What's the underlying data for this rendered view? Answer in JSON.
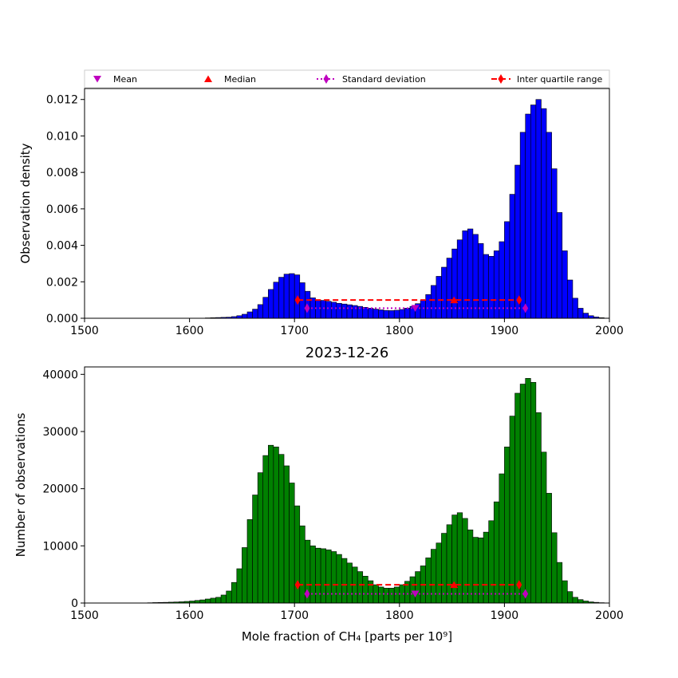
{
  "title": "2023-12-26",
  "legend": {
    "placement": "top",
    "items": [
      {
        "label": "Mean",
        "marker": "triangle-down",
        "color": "#bf00bf"
      },
      {
        "label": "Median",
        "marker": "triangle-up",
        "color": "#ff0000"
      },
      {
        "label": "Standard deviation",
        "marker": "diamond-dotted",
        "color": "#bf00bf"
      },
      {
        "label": "Inter quartile range",
        "marker": "diamond-dashed",
        "color": "#ff0000"
      }
    ]
  },
  "chart_data": [
    {
      "type": "bar",
      "panel": "top",
      "color": "#0000ff",
      "xlabel": "",
      "ylabel": "Observation density",
      "xlim": [
        1500,
        2000
      ],
      "ylim": [
        0,
        0.0126
      ],
      "xticks": [
        "1500",
        "1600",
        "1700",
        "1800",
        "1900",
        "2000"
      ],
      "yticks": [
        "0.000",
        "0.002",
        "0.004",
        "0.006",
        "0.008",
        "0.010",
        "0.012"
      ],
      "bin_start": 1500,
      "bin_width": 5,
      "values": [
        0,
        0,
        0,
        0,
        0,
        0,
        0,
        0,
        0,
        0,
        0,
        0,
        0,
        0,
        0,
        0,
        0,
        0,
        0,
        0,
        0,
        0,
        0,
        2e-05,
        3e-05,
        4e-05,
        5e-05,
        6e-05,
        9e-05,
        0.00014,
        0.00022,
        0.00035,
        0.0005,
        0.00075,
        0.00115,
        0.00158,
        0.00198,
        0.00225,
        0.00242,
        0.00245,
        0.00238,
        0.00195,
        0.00148,
        0.00112,
        0.001,
        0.00098,
        0.00093,
        0.00088,
        0.00082,
        0.00078,
        0.00074,
        0.0007,
        0.00065,
        0.0006,
        0.00055,
        0.0005,
        0.00046,
        0.00043,
        0.00042,
        0.00044,
        0.00048,
        0.00055,
        0.00065,
        0.0008,
        0.001,
        0.0013,
        0.0018,
        0.0023,
        0.0028,
        0.0033,
        0.0038,
        0.0043,
        0.0048,
        0.0049,
        0.0046,
        0.0041,
        0.0035,
        0.0034,
        0.0037,
        0.0042,
        0.0053,
        0.0068,
        0.0084,
        0.0102,
        0.0112,
        0.0117,
        0.012,
        0.0115,
        0.0102,
        0.0082,
        0.0058,
        0.0037,
        0.0021,
        0.0011,
        0.00055,
        0.00028,
        0.00014,
        7e-05,
        3e-05,
        1e-05
      ],
      "stats": {
        "mean": {
          "x": 1815,
          "y": 0.00055
        },
        "median": {
          "x": 1852,
          "y": 0.001
        },
        "std_range": {
          "x": [
            1712,
            1920
          ],
          "y": 0.00055
        },
        "iqr_range": {
          "x": [
            1703,
            1914
          ],
          "y": 0.001
        }
      }
    },
    {
      "type": "bar",
      "panel": "bottom",
      "color": "#008000",
      "xlabel": "Mole fraction of CH₄ [parts per 10⁹]",
      "ylabel": "Number of observations",
      "xlim": [
        1500,
        2000
      ],
      "ylim": [
        0,
        41300
      ],
      "xticks": [
        "1500",
        "1600",
        "1700",
        "1800",
        "1900",
        "2000"
      ],
      "yticks": [
        "0",
        "10000",
        "20000",
        "30000",
        "40000"
      ],
      "bin_start": 1500,
      "bin_width": 5,
      "values": [
        0,
        0,
        0,
        0,
        0,
        0,
        0,
        0,
        0,
        0,
        0,
        0,
        50,
        80,
        100,
        120,
        150,
        180,
        220,
        280,
        350,
        450,
        550,
        700,
        850,
        1000,
        1400,
        2100,
        3600,
        6000,
        9700,
        14600,
        18900,
        22800,
        25800,
        27600,
        27300,
        26000,
        24000,
        21000,
        17000,
        13500,
        11000,
        10000,
        9600,
        9500,
        9300,
        9000,
        8500,
        7800,
        7000,
        6300,
        5500,
        4700,
        3900,
        3200,
        2800,
        2600,
        2600,
        2800,
        3200,
        3800,
        4600,
        5500,
        6500,
        7900,
        9400,
        10500,
        12200,
        13700,
        15400,
        15800,
        14800,
        12800,
        11500,
        11400,
        12400,
        14400,
        17700,
        22600,
        27300,
        32700,
        36700,
        38300,
        39300,
        38600,
        33300,
        26400,
        19200,
        12300,
        7100,
        3900,
        2000,
        1000,
        600,
        350,
        200,
        120,
        60,
        30
      ],
      "stats": {
        "mean": {
          "x": 1815,
          "y": 1600
        },
        "median": {
          "x": 1852,
          "y": 3200
        },
        "std_range": {
          "x": [
            1712,
            1920
          ],
          "y": 1600
        },
        "iqr_range": {
          "x": [
            1703,
            1914
          ],
          "y": 3200
        }
      }
    }
  ]
}
